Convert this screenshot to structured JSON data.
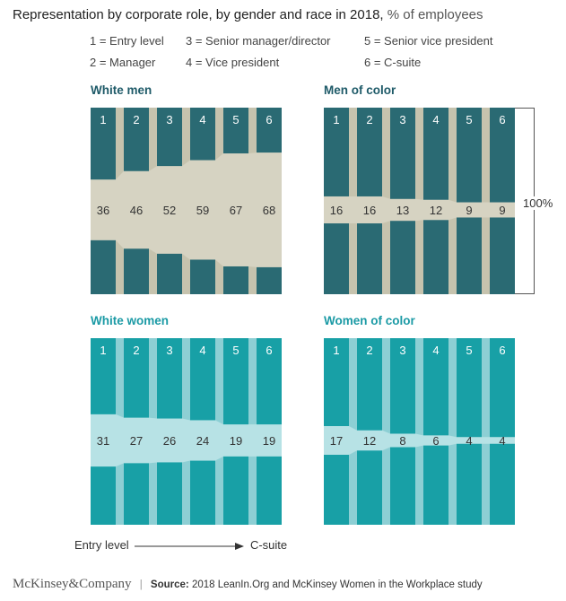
{
  "title": {
    "main": "Representation by corporate role, by gender and race in 2018,",
    "unit": "% of employees"
  },
  "legend": [
    "1 = Entry level",
    "2 = Manager",
    "3 = Senior manager/director",
    "4 = Vice president",
    "5 = Senior vice president",
    "6 = C-suite"
  ],
  "axis_note": {
    "start": "Entry level",
    "end": "C-suite"
  },
  "bracket_label": "100%",
  "footer": {
    "brand": "McKinsey&Company",
    "separator": "|",
    "source_label": "Source:",
    "source_text": "2018 LeanIn.Org and McKinsey Women in the Workplace study"
  },
  "colors": {
    "dark_bar": "#2a6a73",
    "dark_fill": "#d6d3c2",
    "dark_gap": "#c6c3ae",
    "teal_bar": "#18a0a6",
    "teal_fill": "#b7e2e5",
    "teal_gap": "#8dcfd4",
    "bar_number": "#ffffff",
    "value_text": "#333333"
  },
  "chart_data": [
    {
      "type": "bar",
      "title": "White men",
      "categories": [
        "1",
        "2",
        "3",
        "4",
        "5",
        "6"
      ],
      "values": [
        36,
        46,
        52,
        59,
        67,
        68
      ],
      "ylim": [
        0,
        100
      ],
      "style": "dark"
    },
    {
      "type": "bar",
      "title": "Men of color",
      "categories": [
        "1",
        "2",
        "3",
        "4",
        "5",
        "6"
      ],
      "values": [
        16,
        16,
        13,
        12,
        9,
        9
      ],
      "ylim": [
        0,
        100
      ],
      "style": "dark"
    },
    {
      "type": "bar",
      "title": "White women",
      "categories": [
        "1",
        "2",
        "3",
        "4",
        "5",
        "6"
      ],
      "values": [
        31,
        27,
        26,
        24,
        19,
        19
      ],
      "ylim": [
        0,
        100
      ],
      "style": "teal"
    },
    {
      "type": "bar",
      "title": "Women of color",
      "categories": [
        "1",
        "2",
        "3",
        "4",
        "5",
        "6"
      ],
      "values": [
        17,
        12,
        8,
        6,
        4,
        4
      ],
      "ylim": [
        0,
        100
      ],
      "style": "teal"
    }
  ]
}
